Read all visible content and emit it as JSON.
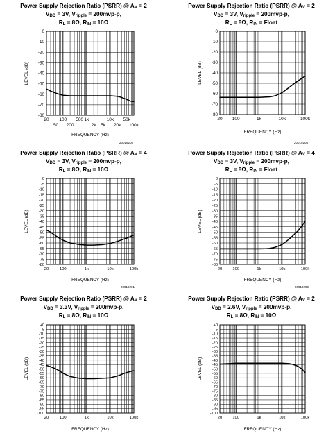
{
  "figure_codes": [
    "20019205",
    "20019208",
    "20019201",
    "20019209"
  ],
  "chart_data": [
    {
      "type": "line",
      "title": {
        "main": "Power Supply Rejection Ratio (PSRR) @ A",
        "main_sub": "V",
        "main_tail": " = 2",
        "l2a": "V",
        "l2a_sub": "DD",
        "l2b": " = 3V, V",
        "l2b_sub": "ripple",
        "l2c": " = 200mvp-p,",
        "l3a": "R",
        "l3a_sub": "L",
        "l3b": " = 8Ω, R",
        "l3b_sub": "IN",
        "l3c": " = 10Ω"
      },
      "xlabel": "FREQUENCY (Hz)",
      "ylabel": "LEVEL (dB)",
      "x_scale": "log",
      "xlim": [
        20,
        100000
      ],
      "ylim": [
        -80,
        0
      ],
      "grid": true,
      "yticks": [
        0,
        -10,
        -20,
        -30,
        -40,
        -50,
        -60,
        -70,
        -80
      ],
      "yticklabels": [
        "0",
        "-10",
        "-20",
        "-30",
        "-40",
        "-50",
        "-60",
        "-70",
        "-80"
      ],
      "xticks_row1": [
        20,
        100,
        500,
        1000,
        10000,
        50000
      ],
      "xticklabels_row1": [
        "20",
        "100",
        "500",
        "1k",
        "10k",
        "50k"
      ],
      "xticks_row2": [
        50,
        200,
        2000,
        5000,
        20000,
        100000
      ],
      "xticklabels_row2": [
        "50",
        "200",
        "2k",
        "5k",
        "20k",
        "100k"
      ],
      "series": [
        {
          "x": [
            20,
            30,
            50,
            70,
            100,
            200,
            500,
            1000,
            2000,
            5000,
            10000,
            20000,
            30000,
            50000,
            70000,
            100000
          ],
          "y": [
            -55,
            -57,
            -59,
            -60,
            -61,
            -61.5,
            -61.5,
            -61.5,
            -61.5,
            -61.5,
            -61.5,
            -62,
            -63,
            -65,
            -66.5,
            -67
          ]
        }
      ]
    },
    {
      "type": "line",
      "title": {
        "main": "Power Supply Rejection Ratio (PSRR) @ A",
        "main_sub": "V",
        "main_tail": " = 2",
        "l2a": "V",
        "l2a_sub": "DD",
        "l2b": " = 3V, V",
        "l2b_sub": "ripple",
        "l2c": " = 200mvp-p,",
        "l3a": "R",
        "l3a_sub": "L",
        "l3b": " = 8Ω, R",
        "l3b_sub": "IN",
        "l3c": " = Float"
      },
      "xlabel": "FREQUENCY (Hz)",
      "ylabel": "LEVEL (dB)",
      "x_scale": "log",
      "xlim": [
        20,
        100000
      ],
      "ylim": [
        -80,
        0
      ],
      "grid": true,
      "yticks": [
        0,
        -10,
        -20,
        -30,
        -40,
        -50,
        -60,
        -70,
        -80
      ],
      "yticklabels": [
        "0",
        "-10",
        "-20",
        "-30",
        "-40",
        "-50",
        "-60",
        "-70",
        "-80"
      ],
      "xticks_row1": [
        20,
        100,
        1000,
        10000,
        100000
      ],
      "xticklabels_row1": [
        "20",
        "100",
        "1k",
        "10k",
        "100k"
      ],
      "series": [
        {
          "x": [
            20,
            50,
            100,
            200,
            500,
            1000,
            2000,
            3000,
            5000,
            10000,
            20000,
            30000,
            50000,
            100000
          ],
          "y": [
            -63.5,
            -63.5,
            -63.5,
            -63.5,
            -63.5,
            -63.5,
            -63.2,
            -63,
            -62,
            -59,
            -54,
            -51,
            -47.5,
            -43
          ]
        }
      ]
    },
    {
      "type": "line",
      "title": {
        "main": "Power Supply Rejection Ratio (PSRR) @ A",
        "main_sub": "V",
        "main_tail": " = 4",
        "l2a": "V",
        "l2a_sub": "DD",
        "l2b": " = 3V, V",
        "l2b_sub": "ripple",
        "l2c": " = 200mvp-p,",
        "l3a": "R",
        "l3a_sub": "L",
        "l3b": " = 8Ω, R",
        "l3b_sub": "IN",
        "l3c": " = 10Ω"
      },
      "xlabel": "FREQUENCY (Hz)",
      "ylabel": "LEVEL (dB)",
      "x_scale": "log",
      "xlim": [
        20,
        100000
      ],
      "ylim": [
        -80,
        0
      ],
      "grid": true,
      "yticks": [
        0,
        -5,
        -10,
        -15,
        -20,
        -25,
        -30,
        -35,
        -40,
        -45,
        -50,
        -55,
        -60,
        -65,
        -70,
        -75,
        -80
      ],
      "yticklabels": [
        "0",
        "-5",
        "-10",
        "-15",
        "-20",
        "-25",
        "-30",
        "-35",
        "-40",
        "-45",
        "-50",
        "-55",
        "-60",
        "-65",
        "-70",
        "-75",
        "-80"
      ],
      "xticks_row1": [
        20,
        100,
        1000,
        10000,
        100000
      ],
      "xticklabels_row1": [
        "20",
        "100",
        "1k",
        "10k",
        "100k"
      ],
      "series": [
        {
          "x": [
            20,
            30,
            50,
            70,
            100,
            200,
            500,
            1000,
            2000,
            5000,
            10000,
            20000,
            50000,
            100000
          ],
          "y": [
            -48,
            -50,
            -53.5,
            -55.5,
            -57.5,
            -60,
            -61.5,
            -62,
            -62,
            -61.5,
            -60.5,
            -58.5,
            -55.5,
            -52.5
          ]
        }
      ]
    },
    {
      "type": "line",
      "title": {
        "main": "Power Supply Rejection Ratio (PSRR) @ A",
        "main_sub": "V",
        "main_tail": " = 4",
        "l2a": "V",
        "l2a_sub": "DD",
        "l2b": " = 3V, V",
        "l2b_sub": "ripple",
        "l2c": " = 200mvp-p,",
        "l3a": "R",
        "l3a_sub": "L",
        "l3b": " = 8Ω, R",
        "l3b_sub": "IN",
        "l3c": " = Float"
      },
      "xlabel": "FREQUENCY (Hz)",
      "ylabel": "LEVEL (dB)",
      "x_scale": "log",
      "xlim": [
        20,
        100000
      ],
      "ylim": [
        -80,
        0
      ],
      "grid": true,
      "yticks": [
        0,
        -5,
        -10,
        -15,
        -20,
        -25,
        -30,
        -35,
        -40,
        -45,
        -50,
        -55,
        -60,
        -65,
        -70,
        -75,
        -80
      ],
      "yticklabels": [
        "0",
        "-5",
        "-10",
        "-15",
        "-20",
        "-25",
        "-30",
        "-35",
        "-40",
        "-45",
        "-50",
        "-55",
        "-60",
        "-65",
        "-70",
        "-75",
        "-80"
      ],
      "xticks_row1": [
        20,
        100,
        1000,
        10000,
        100000
      ],
      "xticklabels_row1": [
        "20",
        "100",
        "1k",
        "10k",
        "100k"
      ],
      "series": [
        {
          "x": [
            20,
            50,
            100,
            200,
            500,
            1000,
            2000,
            3000,
            5000,
            10000,
            20000,
            30000,
            50000,
            100000
          ],
          "y": [
            -65.5,
            -65.5,
            -65.5,
            -65.5,
            -65.5,
            -65.5,
            -65.3,
            -65,
            -64,
            -61.5,
            -56.5,
            -53,
            -48.5,
            -40
          ]
        }
      ]
    },
    {
      "type": "line",
      "title": {
        "main": "Power Supply Rejection Ratio (PSRR) @ A",
        "main_sub": "V",
        "main_tail": " = 2",
        "l2a": "V",
        "l2a_sub": "DD",
        "l2b": " = 3.3V, V",
        "l2b_sub": "ripple",
        "l2c": " = 200mvp-p,",
        "l3a": "R",
        "l3a_sub": "L",
        "l3b": " = 8Ω, R",
        "l3b_sub": "IN",
        "l3c": " = 10Ω"
      },
      "xlabel": "FREQUENCY (Hz)",
      "ylabel": "LEVEL (dB)",
      "x_scale": "log",
      "xlim": [
        20,
        100000
      ],
      "ylim": [
        -100,
        0
      ],
      "grid": true,
      "yticks": [
        0,
        -5,
        -10,
        -15,
        -20,
        -25,
        -30,
        -35,
        -40,
        -45,
        -50,
        -55,
        -60,
        -65,
        -70,
        -75,
        -80,
        -85,
        -90,
        -95,
        -100
      ],
      "yticklabels": [
        "+0",
        "-5",
        "-10",
        "-15",
        "-20",
        "-25",
        "-30",
        "-35",
        "-40",
        "-45",
        "-50",
        "-55",
        "-60",
        "-65",
        "-70",
        "-75",
        "-80",
        "-85",
        "-90",
        "-95",
        "-100"
      ],
      "xticks_row1": [
        20,
        100,
        1000,
        10000,
        100000
      ],
      "xticklabels_row1": [
        "20",
        "100",
        "1k",
        "10k",
        "100k"
      ],
      "series": [
        {
          "x": [
            20,
            30,
            50,
            70,
            100,
            200,
            300,
            500,
            1000,
            2000,
            5000,
            10000,
            20000,
            50000,
            100000
          ],
          "y": [
            -46,
            -47.5,
            -50,
            -52,
            -55,
            -58.5,
            -59.5,
            -60.5,
            -61,
            -61,
            -60.5,
            -60,
            -58,
            -54,
            -52
          ]
        }
      ]
    },
    {
      "type": "line",
      "title": {
        "main": "Power Supply Rejection Ratio (PSRR) @ A",
        "main_sub": "V",
        "main_tail": " = 2",
        "l2a": "V",
        "l2a_sub": "DD",
        "l2b": " = 2.6V, V",
        "l2b_sub": "ripple",
        "l2c": " = 200mvp-p,",
        "l3a": "R",
        "l3a_sub": "L",
        "l3b": " = 8Ω, R",
        "l3b_sub": "IN",
        "l3c": " = 10Ω"
      },
      "xlabel": "FREQUENCY (Hz)",
      "ylabel": "LEVEL (dB)",
      "x_scale": "log",
      "xlim": [
        20,
        100000
      ],
      "ylim": [
        -100,
        0
      ],
      "grid": true,
      "yticks": [
        0,
        -5,
        -10,
        -15,
        -20,
        -25,
        -30,
        -35,
        -40,
        -45,
        -50,
        -55,
        -60,
        -65,
        -70,
        -75,
        -80,
        -85,
        -90,
        -95,
        -100
      ],
      "yticklabels": [
        "+0",
        "-5",
        "-10",
        "-15",
        "-20",
        "-25",
        "-30",
        "-35",
        "-40",
        "-45",
        "-50",
        "-55",
        "-60",
        "-65",
        "-70",
        "-75",
        "-80",
        "-85",
        "-90",
        "-95",
        "-100"
      ],
      "xticks_row1": [
        20,
        100,
        1000,
        10000,
        100000
      ],
      "xticklabels_row1": [
        "20",
        "100",
        "1k",
        "10k",
        "100k"
      ],
      "series": [
        {
          "x": [
            20,
            50,
            100,
            200,
            500,
            1000,
            2000,
            5000,
            10000,
            20000,
            30000,
            50000,
            70000,
            100000
          ],
          "y": [
            -44.5,
            -44,
            -43.5,
            -43.5,
            -43.5,
            -43.5,
            -43.5,
            -43.5,
            -43.5,
            -44,
            -45,
            -47,
            -50,
            -54
          ]
        }
      ]
    }
  ]
}
